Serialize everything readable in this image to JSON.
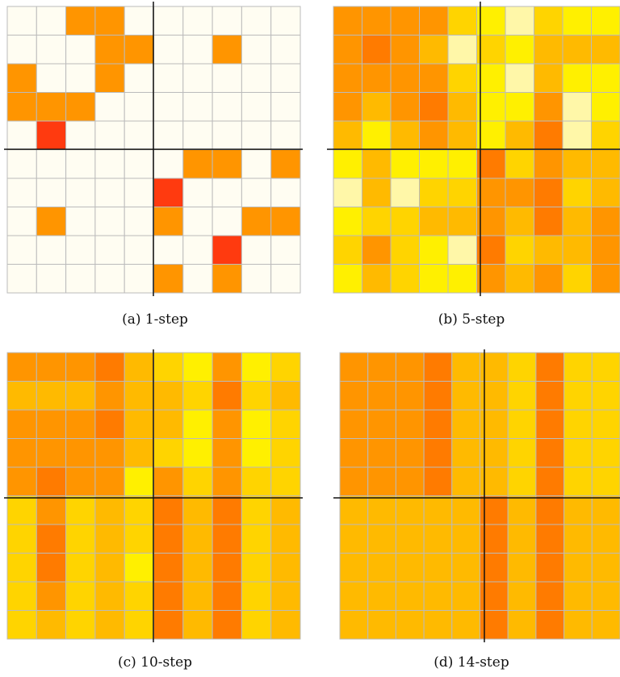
{
  "chart_data": [
    {
      "type": "heatmap",
      "caption": "(a)  1-step",
      "grid": [
        [
          "n",
          "n",
          "o",
          "o",
          "n",
          "n",
          "n",
          "n",
          "n",
          "n"
        ],
        [
          "n",
          "n",
          "n",
          "o",
          "o",
          "n",
          "n",
          "o",
          "n",
          "n"
        ],
        [
          "o",
          "n",
          "n",
          "o",
          "n",
          "n",
          "n",
          "n",
          "n",
          "n"
        ],
        [
          "o",
          "o",
          "o",
          "n",
          "n",
          "n",
          "n",
          "n",
          "n",
          "n"
        ],
        [
          "n",
          "r",
          "n",
          "n",
          "n",
          "n",
          "n",
          "n",
          "n",
          "n"
        ],
        [
          "n",
          "n",
          "n",
          "n",
          "n",
          "n",
          "o",
          "o",
          "n",
          "o"
        ],
        [
          "n",
          "n",
          "n",
          "n",
          "n",
          "r",
          "n",
          "n",
          "n",
          "n"
        ],
        [
          "n",
          "o",
          "n",
          "n",
          "n",
          "o",
          "n",
          "n",
          "o",
          "o"
        ],
        [
          "n",
          "n",
          "n",
          "n",
          "n",
          "n",
          "n",
          "r",
          "n",
          "n"
        ],
        [
          "n",
          "n",
          "n",
          "n",
          "n",
          "o",
          "n",
          "o",
          "n",
          "n"
        ]
      ]
    },
    {
      "type": "heatmap",
      "caption": "(b)  5-step",
      "grid": [
        [
          "o",
          "o",
          "o",
          "o",
          "g",
          "y",
          "p",
          "g",
          "y",
          "y"
        ],
        [
          "o",
          "O",
          "o",
          "a",
          "p",
          "g",
          "y",
          "a",
          "a",
          "a"
        ],
        [
          "o",
          "o",
          "o",
          "o",
          "g",
          "y",
          "p",
          "a",
          "y",
          "y"
        ],
        [
          "o",
          "a",
          "o",
          "O",
          "a",
          "y",
          "y",
          "o",
          "p",
          "y"
        ],
        [
          "a",
          "y",
          "a",
          "o",
          "a",
          "y",
          "a",
          "O",
          "p",
          "g"
        ],
        [
          "y",
          "a",
          "y",
          "y",
          "y",
          "O",
          "g",
          "o",
          "a",
          "a"
        ],
        [
          "p",
          "a",
          "p",
          "g",
          "g",
          "o",
          "o",
          "O",
          "g",
          "a"
        ],
        [
          "y",
          "g",
          "g",
          "a",
          "a",
          "o",
          "a",
          "O",
          "a",
          "o"
        ],
        [
          "g",
          "o",
          "g",
          "y",
          "p",
          "O",
          "g",
          "a",
          "a",
          "o"
        ],
        [
          "y",
          "a",
          "g",
          "y",
          "y",
          "o",
          "a",
          "o",
          "g",
          "o"
        ]
      ]
    },
    {
      "type": "heatmap",
      "caption": "(c)  10-step",
      "grid": [
        [
          "o",
          "o",
          "o",
          "O",
          "a",
          "g",
          "y",
          "o",
          "y",
          "g"
        ],
        [
          "a",
          "a",
          "a",
          "o",
          "a",
          "a",
          "g",
          "O",
          "g",
          "a"
        ],
        [
          "o",
          "o",
          "o",
          "O",
          "a",
          "a",
          "y",
          "o",
          "y",
          "g"
        ],
        [
          "o",
          "o",
          "o",
          "o",
          "a",
          "g",
          "y",
          "o",
          "y",
          "g"
        ],
        [
          "o",
          "O",
          "o",
          "o",
          "y",
          "o",
          "g",
          "o",
          "g",
          "g"
        ],
        [
          "g",
          "o",
          "g",
          "a",
          "g",
          "O",
          "a",
          "O",
          "g",
          "a"
        ],
        [
          "g",
          "O",
          "g",
          "a",
          "g",
          "O",
          "a",
          "O",
          "g",
          "a"
        ],
        [
          "g",
          "O",
          "g",
          "a",
          "y",
          "O",
          "a",
          "O",
          "g",
          "a"
        ],
        [
          "g",
          "o",
          "g",
          "a",
          "g",
          "O",
          "a",
          "O",
          "g",
          "a"
        ],
        [
          "g",
          "a",
          "g",
          "a",
          "g",
          "O",
          "a",
          "O",
          "g",
          "a"
        ]
      ]
    },
    {
      "type": "heatmap",
      "caption": "(d)  14-step",
      "grid": [
        [
          "o",
          "o",
          "o",
          "O",
          "a",
          "a",
          "g",
          "O",
          "g",
          "g"
        ],
        [
          "o",
          "o",
          "o",
          "O",
          "a",
          "a",
          "g",
          "O",
          "g",
          "g"
        ],
        [
          "o",
          "o",
          "o",
          "O",
          "a",
          "a",
          "g",
          "O",
          "g",
          "g"
        ],
        [
          "o",
          "o",
          "o",
          "O",
          "a",
          "a",
          "g",
          "O",
          "g",
          "g"
        ],
        [
          "o",
          "o",
          "o",
          "O",
          "a",
          "a",
          "g",
          "O",
          "g",
          "g"
        ],
        [
          "a",
          "a",
          "a",
          "a",
          "a",
          "O",
          "a",
          "O",
          "a",
          "a"
        ],
        [
          "a",
          "a",
          "a",
          "a",
          "a",
          "O",
          "a",
          "O",
          "a",
          "a"
        ],
        [
          "a",
          "a",
          "a",
          "a",
          "a",
          "O",
          "a",
          "O",
          "a",
          "a"
        ],
        [
          "a",
          "a",
          "a",
          "a",
          "a",
          "O",
          "a",
          "O",
          "a",
          "a"
        ],
        [
          "a",
          "a",
          "a",
          "a",
          "a",
          "O",
          "a",
          "O",
          "a",
          "a"
        ]
      ]
    }
  ],
  "palette": {
    "n": "#fffdf2",
    "p": "#fff7a8",
    "y": "#fff000",
    "g": "#ffd400",
    "a": "#ffba00",
    "o": "#ff9500",
    "O": "#ff7b00",
    "r": "#ff3a0f",
    "grid_line": "#bbbbbb",
    "axis_line": "#111111"
  }
}
